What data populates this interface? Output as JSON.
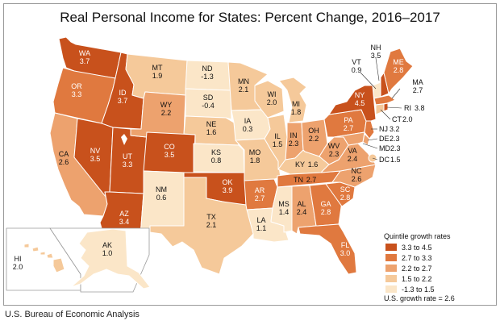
{
  "title": "Real Personal Income for States: Percent Change, 2016–2017",
  "source": "U.S. Bureau of Economic Analysis",
  "legend": {
    "title": "Quintile growth rates",
    "items": [
      {
        "label": "3.3 to 4.5",
        "color": "#c8511c"
      },
      {
        "label": "2.7 to 3.3",
        "color": "#e0793f"
      },
      {
        "label": "2.2 to 2.7",
        "color": "#eda26e"
      },
      {
        "label": "1.5 to 2.2",
        "color": "#f5c99a"
      },
      {
        "label": "-1.3 to 1.5",
        "color": "#fbe6c8"
      }
    ],
    "us_rate": "U.S. growth rate = 2.6"
  },
  "states": {
    "WA": {
      "abbr": "WA",
      "value": "3.7"
    },
    "OR": {
      "abbr": "OR",
      "value": "3.3"
    },
    "CA": {
      "abbr": "CA",
      "value": "2.6"
    },
    "ID": {
      "abbr": "ID",
      "value": "3.7"
    },
    "NV": {
      "abbr": "NV",
      "value": "3.5"
    },
    "UT": {
      "abbr": "UT",
      "value": "3.3"
    },
    "AZ": {
      "abbr": "AZ",
      "value": "3.4"
    },
    "MT": {
      "abbr": "MT",
      "value": "1.9"
    },
    "WY": {
      "abbr": "WY",
      "value": "2.2"
    },
    "CO": {
      "abbr": "CO",
      "value": "3.5"
    },
    "NM": {
      "abbr": "NM",
      "value": "0.6"
    },
    "ND": {
      "abbr": "ND",
      "value": "-1.3"
    },
    "SD": {
      "abbr": "SD",
      "value": "-0.4"
    },
    "NE": {
      "abbr": "NE",
      "value": "1.6"
    },
    "KS": {
      "abbr": "KS",
      "value": "0.8"
    },
    "OK": {
      "abbr": "OK",
      "value": "3.9"
    },
    "TX": {
      "abbr": "TX",
      "value": "2.1"
    },
    "MN": {
      "abbr": "MN",
      "value": "2.1"
    },
    "IA": {
      "abbr": "IA",
      "value": "0.3"
    },
    "MO": {
      "abbr": "MO",
      "value": "1.8"
    },
    "AR": {
      "abbr": "AR",
      "value": "2.7"
    },
    "LA": {
      "abbr": "LA",
      "value": "1.1"
    },
    "WI": {
      "abbr": "WI",
      "value": "2.0"
    },
    "IL": {
      "abbr": "IL",
      "value": "1.5"
    },
    "MI": {
      "abbr": "MI",
      "value": "1.8"
    },
    "IN": {
      "abbr": "IN",
      "value": "2.3"
    },
    "OH": {
      "abbr": "OH",
      "value": "2.2"
    },
    "KY": {
      "abbr": "KY",
      "value": "1.6"
    },
    "TN": {
      "abbr": "TN",
      "value": "2.7"
    },
    "MS": {
      "abbr": "MS",
      "value": "1.4"
    },
    "AL": {
      "abbr": "AL",
      "value": "2.4"
    },
    "GA": {
      "abbr": "GA",
      "value": "2.8"
    },
    "FL": {
      "abbr": "FL",
      "value": "3.0"
    },
    "SC": {
      "abbr": "SC",
      "value": "2.8"
    },
    "NC": {
      "abbr": "NC",
      "value": "2.6"
    },
    "VA": {
      "abbr": "VA",
      "value": "2.4"
    },
    "WV": {
      "abbr": "WV",
      "value": "2.3"
    },
    "PA": {
      "abbr": "PA",
      "value": "2.7"
    },
    "NY": {
      "abbr": "NY",
      "value": "4.5"
    },
    "ME": {
      "abbr": "ME",
      "value": "2.8"
    },
    "VT": {
      "abbr": "VT",
      "value": "0.9"
    },
    "NH": {
      "abbr": "NH",
      "value": "3.5"
    },
    "MA": {
      "abbr": "MA",
      "value": "2.7"
    },
    "RI": {
      "abbr": "RI",
      "value": "3.8"
    },
    "CT": {
      "abbr": "CT",
      "value": "2.0"
    },
    "NJ": {
      "abbr": "NJ",
      "value": "3.2"
    },
    "DE": {
      "abbr": "DE",
      "value": "2.3"
    },
    "MD": {
      "abbr": "MD",
      "value": "2.3"
    },
    "DC": {
      "abbr": "DC",
      "value": "1.5"
    },
    "AK": {
      "abbr": "AK",
      "value": "1.0"
    },
    "HI": {
      "abbr": "HI",
      "value": "2.0"
    }
  }
}
